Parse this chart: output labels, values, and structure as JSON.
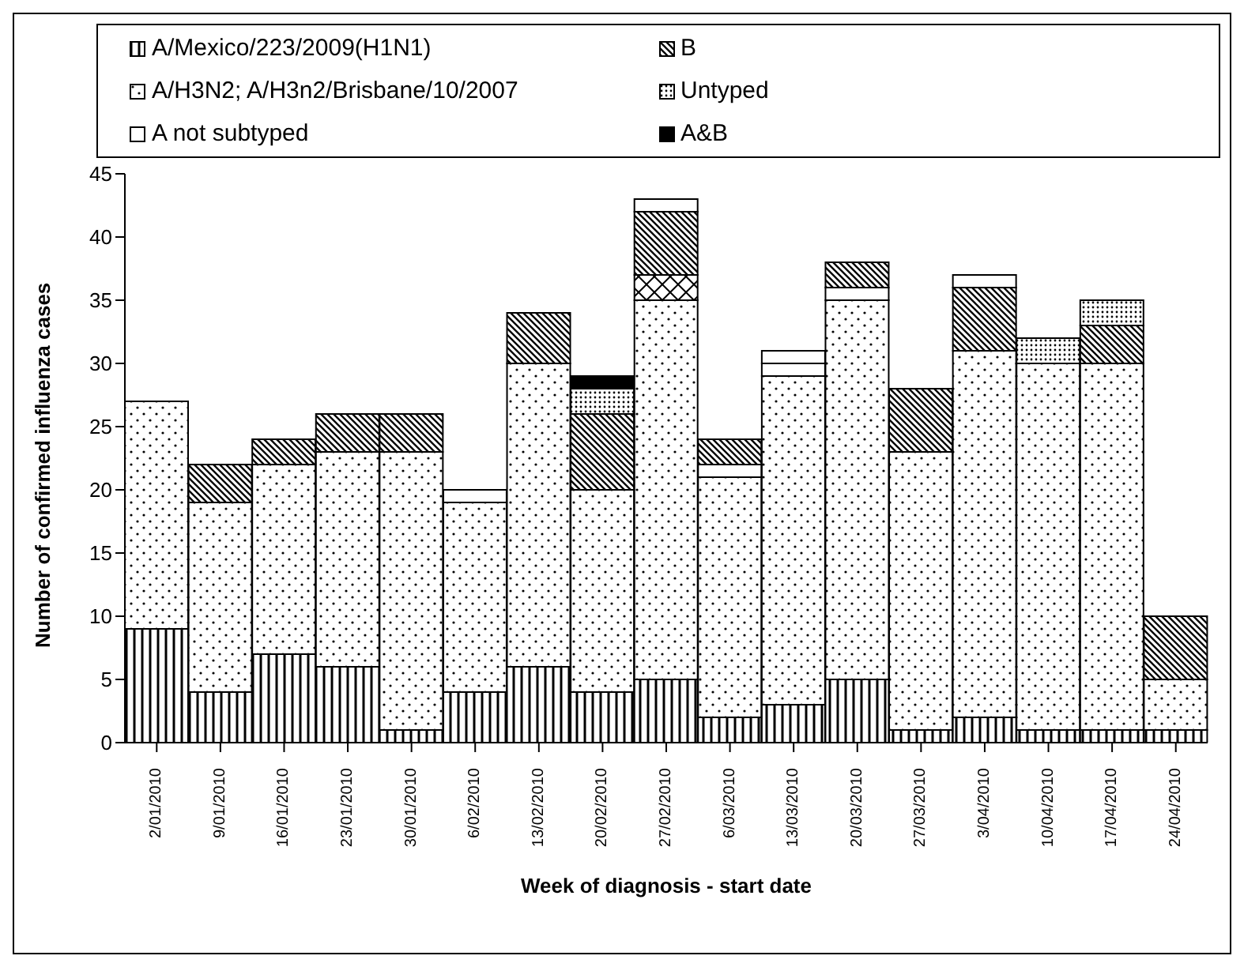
{
  "chart_data": {
    "type": "bar",
    "stacked": true,
    "xlabel": "Week of diagnosis - start date",
    "ylabel": "Number of confirmed influenza cases",
    "categories": [
      "2/01/2010",
      "9/01/2010",
      "16/01/2010",
      "23/01/2010",
      "30/01/2010",
      "6/02/2010",
      "13/02/2010",
      "20/02/2010",
      "27/02/2010",
      "6/03/2010",
      "13/03/2010",
      "20/03/2010",
      "27/03/2010",
      "3/04/2010",
      "10/04/2010",
      "17/04/2010",
      "24/04/2010"
    ],
    "series": [
      {
        "name": "A/Mexico/223/2009(H1N1)",
        "color": "#000000",
        "values": [
          9,
          4,
          7,
          6,
          1,
          4,
          6,
          4,
          5,
          2,
          3,
          5,
          1,
          2,
          1,
          1,
          1
        ]
      },
      {
        "name": "A/H3N2; A/H3n2/Brisbane/10/2007",
        "color": "#000000",
        "values": [
          18,
          15,
          15,
          17,
          22,
          15,
          24,
          16,
          30,
          19,
          26,
          30,
          22,
          29,
          29,
          29,
          4
        ]
      },
      {
        "name": "A not subtyped",
        "color": "#ffffff",
        "values": [
          0,
          0,
          0,
          0,
          0,
          1,
          0,
          0,
          0,
          1,
          1,
          1,
          0,
          0,
          0,
          0,
          0
        ]
      },
      {
        "color": "#000000",
        "values": [
          0,
          0,
          0,
          0,
          0,
          0,
          0,
          0,
          2,
          0,
          0,
          0,
          0,
          0,
          0,
          0,
          0
        ]
      },
      {
        "name": "B",
        "color": "#000000",
        "values": [
          0,
          3,
          2,
          3,
          3,
          0,
          4,
          6,
          5,
          2,
          0,
          2,
          5,
          5,
          0,
          3,
          5
        ]
      },
      {
        "name": "Untyped",
        "color": "#000000",
        "values": [
          0,
          0,
          0,
          0,
          0,
          0,
          0,
          2,
          0,
          0,
          0,
          0,
          0,
          0,
          2,
          2,
          0
        ]
      },
      {
        "name": "A&B",
        "color": "#000000",
        "values": [
          0,
          0,
          0,
          0,
          0,
          0,
          0,
          1,
          0,
          0,
          0,
          0,
          0,
          0,
          0,
          0,
          0
        ]
      },
      {
        "color": "#ffffff",
        "values": [
          0,
          0,
          0,
          0,
          0,
          0,
          0,
          0,
          1,
          0,
          1,
          0,
          0,
          1,
          0,
          0,
          0
        ]
      }
    ],
    "ylim": [
      0,
      45
    ],
    "yticks": [
      0,
      5,
      10,
      15,
      20,
      25,
      30,
      35,
      40,
      45
    ],
    "grid": false,
    "legend": "top"
  }
}
